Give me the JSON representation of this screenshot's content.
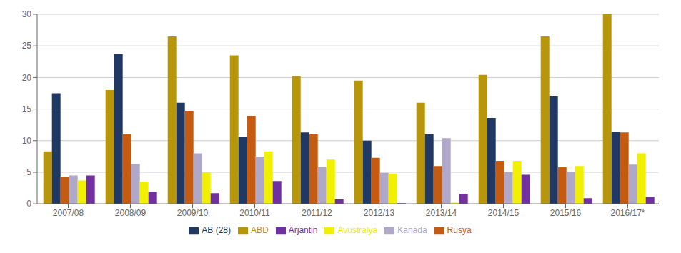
{
  "chart_data": {
    "type": "bar",
    "categories": [
      "2007/08",
      "2008/09",
      "2009/10",
      "2010/11",
      "2011/12",
      "2012/13",
      "2013/14",
      "2014/15",
      "2015/16",
      "2016/17*"
    ],
    "series": [
      {
        "name": "ABD",
        "color": "#b8960c",
        "values": [
          8.3,
          18.0,
          26.5,
          23.5,
          20.2,
          19.5,
          16.0,
          20.4,
          26.5,
          30.0
        ]
      },
      {
        "name": "AB (28)",
        "color": "#1f3864",
        "values": [
          17.5,
          23.7,
          16.0,
          10.6,
          11.3,
          10.0,
          11.0,
          13.6,
          17.0,
          11.4
        ]
      },
      {
        "name": "Rusya",
        "color": "#c55a11",
        "values": [
          4.3,
          11.0,
          14.7,
          13.9,
          11.0,
          7.3,
          6.0,
          6.8,
          5.8,
          11.3
        ]
      },
      {
        "name": "Kanada",
        "color": "#b0a8c8",
        "values": [
          4.5,
          6.3,
          8.0,
          7.5,
          5.8,
          4.9,
          10.4,
          5.0,
          5.1,
          6.2
        ]
      },
      {
        "name": "Avustralya",
        "color": "#f0f000",
        "values": [
          3.7,
          3.5,
          5.0,
          8.3,
          7.0,
          4.8,
          0.2,
          6.8,
          6.0,
          8.0
        ]
      },
      {
        "name": "Arjantin",
        "color": "#7030a0",
        "values": [
          4.5,
          1.9,
          1.7,
          3.6,
          0.7,
          0.1,
          1.6,
          4.6,
          0.9,
          1.1
        ]
      }
    ],
    "ylim": [
      0,
      30
    ],
    "yticks": [
      0,
      5,
      10,
      15,
      20,
      25,
      30
    ],
    "grid": true,
    "legend": "bottom"
  }
}
